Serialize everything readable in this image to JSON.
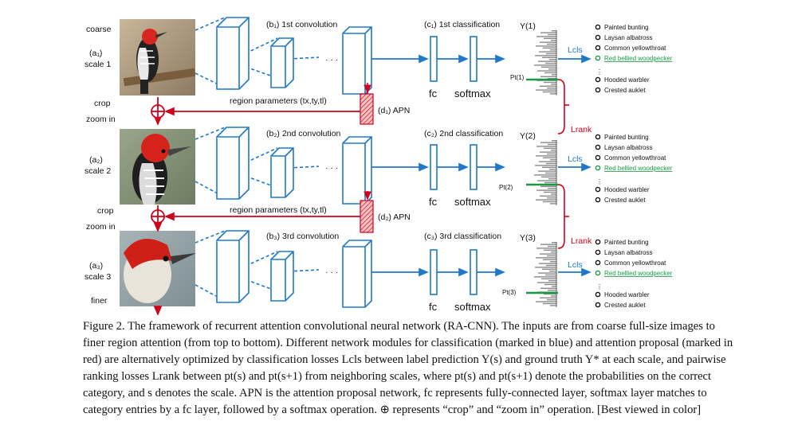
{
  "figure": {
    "side_labels": {
      "coarse": "coarse",
      "finer": "finer",
      "crop1": "crop",
      "zoom1": "zoom in",
      "crop2": "crop",
      "zoom2": "zoom in"
    },
    "scales": [
      {
        "id_label": "(a₁)",
        "scale_label": "scale 1",
        "conv_label": "(b₁) 1st convolution",
        "cls_label": "(c₁) 1st classification",
        "y_label": "Y(1)",
        "p_label": "Pt(1)",
        "fc": "fc",
        "softmax": "softmax",
        "lcls": "Lcls"
      },
      {
        "id_label": "(a₂)",
        "scale_label": "scale 2",
        "conv_label": "(b₂) 2nd convolution",
        "cls_label": "(c₂) 2nd classification",
        "y_label": "Y(2)",
        "p_label": "Pt(2)",
        "fc": "fc",
        "softmax": "softmax",
        "lcls": "Lcls"
      },
      {
        "id_label": "(a₃)",
        "scale_label": "scale 3",
        "conv_label": "(b₃) 3rd convolution",
        "cls_label": "(c₃) 3rd classification",
        "y_label": "Y(3)",
        "p_label": "Pt(3)",
        "fc": "fc",
        "softmax": "softmax",
        "lcls": "Lcls"
      }
    ],
    "apn": [
      {
        "label": "(d₁) APN",
        "region": "region parameters (tx,ty,tl)"
      },
      {
        "label": "(d₂) APN",
        "region": "region parameters (tx,ty,tl)"
      }
    ],
    "lrank": "Lrank",
    "categories": [
      "Painted bunting",
      "Laysan albatross",
      "Common yellowthroat",
      "Red bellied woodpecker",
      "Hooded warbler",
      "Crested auklet"
    ],
    "correct_category_index": 3,
    "colors": {
      "blue": "#1f78c8",
      "red": "#d0021b",
      "green": "#1a9a45",
      "gray": "#888888"
    }
  },
  "caption": {
    "lines": [
      "Figure 2. The framework of recurrent attention convolutional neural network (RA-CNN). The inputs are from coarse full-size images to",
      "finer region attention (from top to bottom). Different network modules for classification (marked in blue) and attention proposal (marked in",
      "red) are alternatively optimized by classification losses Lcls between label prediction Y(s) and ground truth Y* at each scale, and pairwise",
      "ranking losses Lrank between pt(s) and pt(s+1) from neighboring scales, where pt(s) and pt(s+1) denote the probabilities on the correct",
      "category, and s denotes the scale. APN is the attention proposal network, fc represents fully-connected layer, softmax layer matches to",
      "category entries by a fc layer, followed by a softmax operation. ⊕ represents “crop” and “zoom in” operation. [Best viewed in color]"
    ]
  }
}
